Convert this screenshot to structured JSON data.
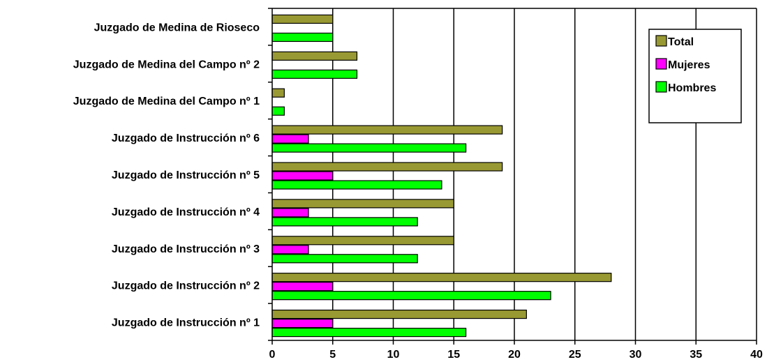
{
  "chart_data": {
    "type": "bar",
    "orientation": "horizontal",
    "categories": [
      "Juzgado de Medina de Rioseco",
      "Juzgado de Medina del Campo nº 2",
      "Juzgado de Medina del Campo nº 1",
      "Juzgado de Instrucción nº 6",
      "Juzgado de Instrucción nº 5",
      "Juzgado de Instrucción nº 4",
      "Juzgado de Instrucción nº 3",
      "Juzgado de Instrucción nº 2",
      "Juzgado de Instrucción nº 1"
    ],
    "series": [
      {
        "name": "Total",
        "color": "#999933",
        "values": [
          5,
          7,
          1,
          19,
          19,
          15,
          15,
          28,
          21
        ]
      },
      {
        "name": "Mujeres",
        "color": "#ff00ff",
        "values": [
          0,
          0,
          0,
          3,
          5,
          3,
          3,
          5,
          5
        ]
      },
      {
        "name": "Hombres",
        "color": "#00ff00",
        "values": [
          5,
          7,
          1,
          16,
          14,
          12,
          12,
          23,
          16
        ]
      }
    ],
    "xlim": [
      0,
      40
    ],
    "xticks": [
      "0",
      "5",
      "10",
      "15",
      "20",
      "25",
      "30",
      "35",
      "40"
    ],
    "grid": "vertical",
    "legend": "top-right"
  }
}
